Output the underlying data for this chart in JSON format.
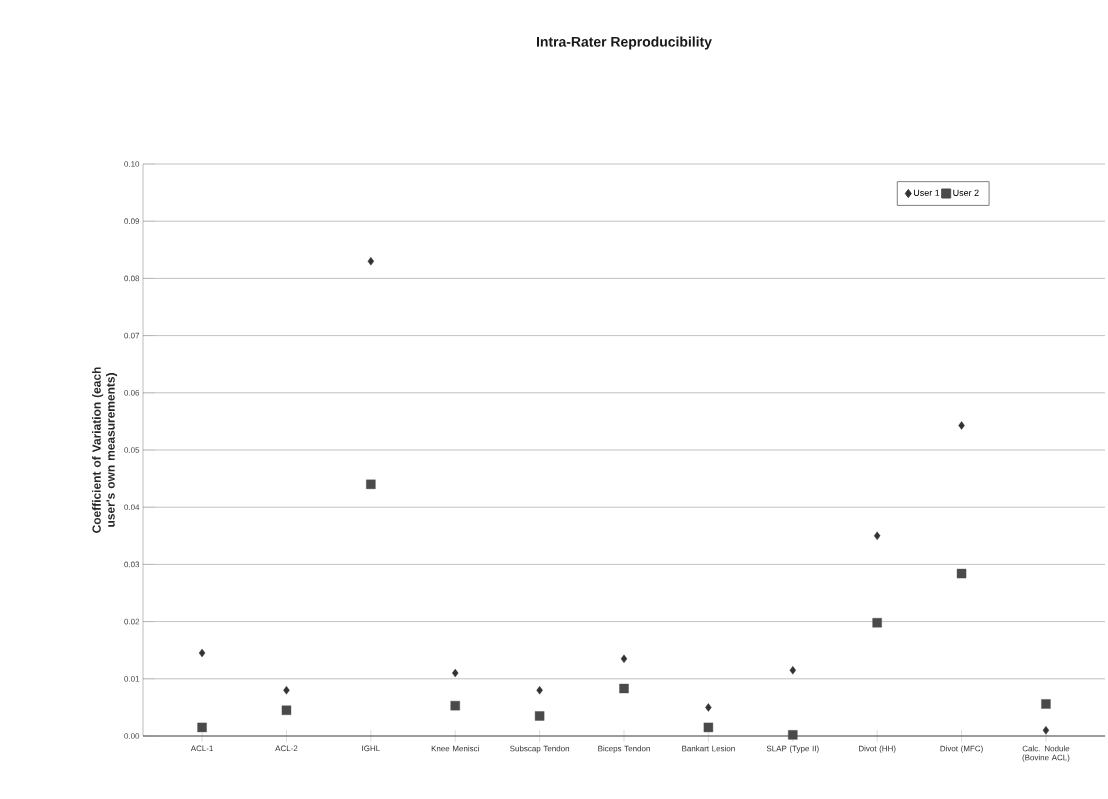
{
  "chart_data": {
    "type": "scatter",
    "title": "Intra-Rater Reproducibility",
    "ylabel": "Coefficient of Variation (each user's own measurements)",
    "categories": [
      "ACL-1",
      "ACL-2",
      "IGHL",
      "Knee Menisci",
      "Subscap Tendon",
      "Biceps Tendon",
      "Bankart Lesion",
      "SLAP (Type II)",
      "Divot (HH)",
      "Divot (MFC)",
      "Calc. Nodule (Bovine ACL)"
    ],
    "series": [
      {
        "name": "User 1",
        "color": "#333333",
        "marker": "diamond",
        "values": [
          0.0145,
          0.008,
          0.083,
          0.011,
          0.008,
          0.0135,
          0.005,
          0.0115,
          0.035,
          0.0543,
          0.001
        ]
      },
      {
        "name": "User 2",
        "color": "#4a4a4a",
        "marker": "square",
        "values": [
          0.0015,
          0.0045,
          0.044,
          0.0053,
          0.0035,
          0.0083,
          0.0015,
          0.0002,
          0.0198,
          0.0284,
          0.0056
        ]
      }
    ],
    "ylim": [
      0,
      0.1
    ],
    "yticks": [
      {
        "value": 0,
        "label": "0.00"
      },
      {
        "value": 0.01,
        "label": "0.01"
      },
      {
        "value": 0.02,
        "label": "0.02"
      },
      {
        "value": 0.03,
        "label": "0.03"
      },
      {
        "value": 0.04,
        "label": "0.04"
      },
      {
        "value": 0.05,
        "label": "0.05"
      },
      {
        "value": 0.06,
        "label": "0.06"
      },
      {
        "value": 0.07,
        "label": "0.07"
      },
      {
        "value": 0.08,
        "label": "0.08"
      },
      {
        "value": 0.09,
        "label": "0.09"
      },
      {
        "value": 0.1,
        "label": "0.10"
      }
    ],
    "grid": "y",
    "legend": "top right"
  }
}
